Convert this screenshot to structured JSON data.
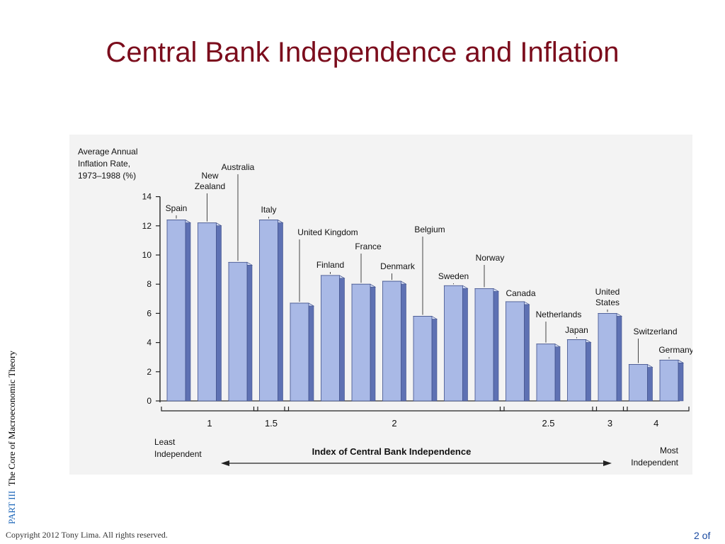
{
  "slide": {
    "title": "Central Bank Independence and Inflation",
    "part_label": "PART  III",
    "part_title": "The Core of Macroeconomic Theory",
    "copyright": "Copyright 2012 Tony Lima.  All rights reserved.",
    "page": "2 of"
  },
  "colors": {
    "title": "#7b0c1c",
    "bar_front": "#a9b9e6",
    "bar_side": "#5e71b3",
    "bar_top": "#d6def4"
  },
  "chart_data": {
    "type": "bar",
    "ylabel": "Average Annual\nInflation Rate,\n1973–1988 (%)",
    "xlabel": "Index of Central Bank Independence",
    "ylim": [
      0,
      14
    ],
    "yticks": [
      0,
      2,
      4,
      6,
      8,
      10,
      12,
      14
    ],
    "categories": [
      "Spain",
      "New Zealand",
      "Australia",
      "Italy",
      "United Kingdom",
      "Finland",
      "France",
      "Denmark",
      "Belgium",
      "Sweden",
      "Norway",
      "Canada",
      "Netherlands",
      "Japan",
      "United States",
      "Switzerland",
      "Germany"
    ],
    "values": [
      12.4,
      12.2,
      9.5,
      12.4,
      6.7,
      8.6,
      8.0,
      8.2,
      5.8,
      7.9,
      7.7,
      6.8,
      3.9,
      4.2,
      6.0,
      2.5,
      2.8
    ],
    "independence_index": [
      1,
      1,
      1,
      1.5,
      2,
      2,
      2,
      2,
      2,
      2,
      2,
      2.5,
      2.5,
      2.5,
      3,
      4,
      4
    ],
    "group_labels": [
      "1",
      "1.5",
      "2",
      "2.5",
      "3",
      "4"
    ],
    "least_label": "Least\nIndependent",
    "most_label": "Most\nIndependent"
  }
}
